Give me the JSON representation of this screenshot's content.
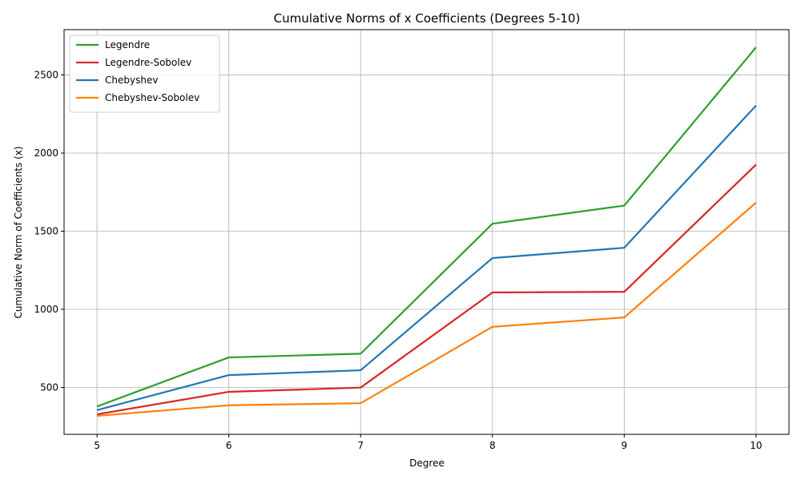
{
  "chart_data": {
    "type": "line",
    "title": "Cumulative Norms of x Coefficients (Degrees 5-10)",
    "xlabel": "Degree",
    "ylabel": "Cumulative Norm of Coefficients (x)",
    "x": [
      5,
      6,
      7,
      8,
      9,
      10
    ],
    "xlim": [
      4.75,
      10.25
    ],
    "ylim": [
      200,
      2790
    ],
    "xticks": [
      5,
      6,
      7,
      8,
      9,
      10
    ],
    "yticks": [
      500,
      1000,
      1500,
      2000,
      2500
    ],
    "grid": true,
    "legend_position": "top-left",
    "series": [
      {
        "name": "Legendre",
        "color": "#2ca02c",
        "values": [
          378,
          692,
          716,
          1548,
          1664,
          2677
        ]
      },
      {
        "name": "Legendre-Sobolev",
        "color": "#d62728",
        "values": [
          328,
          472,
          499,
          1108,
          1112,
          1926
        ]
      },
      {
        "name": "Chebyshev",
        "color": "#1f77b4",
        "values": [
          355,
          579,
          610,
          1328,
          1394,
          2304
        ]
      },
      {
        "name": "Chebyshev-Sobolev",
        "color": "#ff7f0e",
        "values": [
          318,
          386,
          399,
          888,
          948,
          1683
        ]
      }
    ]
  }
}
